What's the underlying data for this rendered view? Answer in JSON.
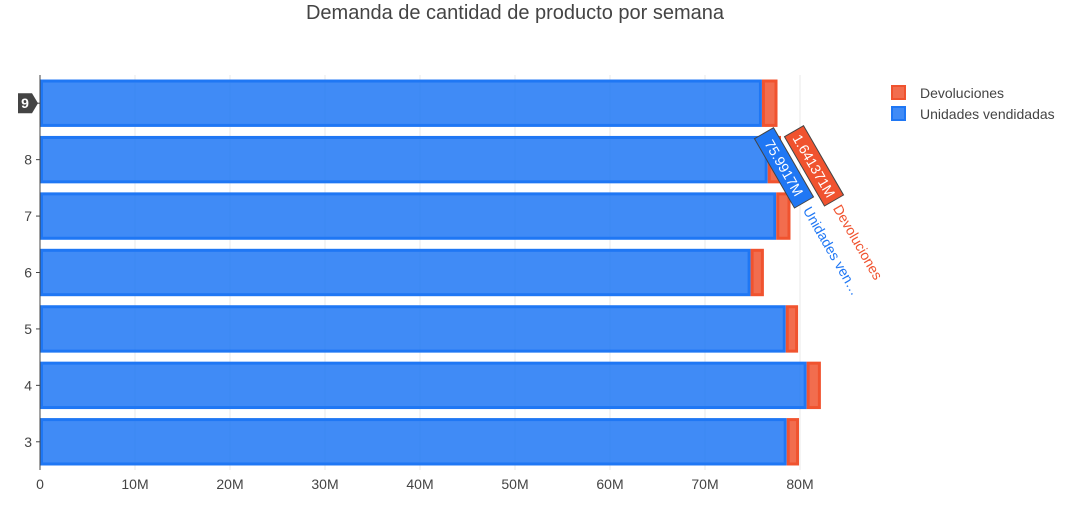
{
  "chart_data": {
    "type": "bar",
    "orientation": "horizontal",
    "barmode": "stack",
    "title": "Demanda de cantidad de producto por semana",
    "categories": [
      "3",
      "4",
      "5",
      "6",
      "7",
      "8",
      "9"
    ],
    "series": [
      {
        "name": "Unidades vendidadas",
        "color": "#1f77f4",
        "values": [
          78.6,
          80.7,
          78.5,
          74.8,
          77.5,
          76.6,
          75.9917
        ]
      },
      {
        "name": "Devoluciones",
        "color": "#f0532f",
        "values": [
          1.3,
          1.5,
          1.3,
          1.4,
          1.5,
          1.4,
          1.641371
        ]
      }
    ],
    "xlim": [
      0,
      86
    ],
    "x_ticks": [
      {
        "value": 0,
        "label": "0"
      },
      {
        "value": 10,
        "label": "10M"
      },
      {
        "value": 20,
        "label": "20M"
      },
      {
        "value": 30,
        "label": "30M"
      },
      {
        "value": 40,
        "label": "40M"
      },
      {
        "value": 50,
        "label": "50M"
      },
      {
        "value": 60,
        "label": "60M"
      },
      {
        "value": 70,
        "label": "70M"
      },
      {
        "value": 80,
        "label": "80M"
      }
    ],
    "grid": true,
    "legend": "top-right",
    "hover": {
      "category": "9",
      "entries": [
        {
          "series": "Unidades vendidadas",
          "value_label": "75.9917M",
          "name_label": "Unidades ven…",
          "color": "#1f77f4"
        },
        {
          "series": "Devoluciones",
          "value_label": "1.641371M",
          "name_label": "Devoluciones",
          "color": "#f0532f"
        }
      ]
    }
  }
}
